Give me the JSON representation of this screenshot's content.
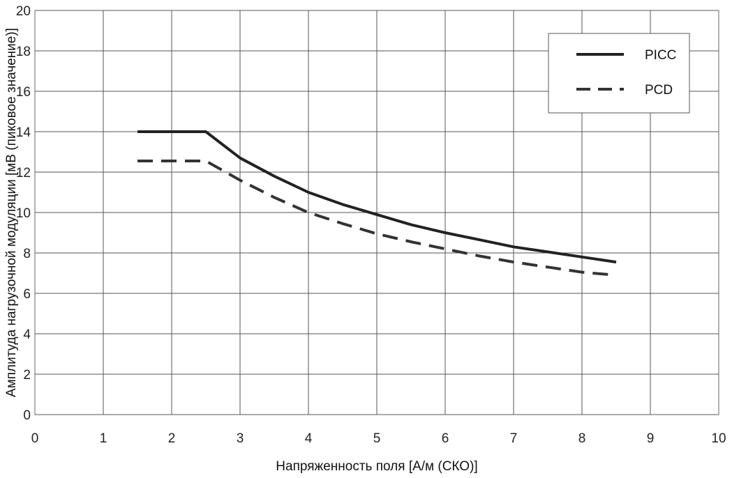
{
  "chart_data": {
    "type": "line",
    "title": "",
    "xlabel": "Напряженность поля [А/м (СКО)]",
    "ylabel": "Амплитуда нагрузочной модуляции [мВ (пиковое значение)]",
    "xlim": [
      0,
      10
    ],
    "ylim": [
      0,
      20
    ],
    "xticks": [
      "0",
      "1",
      "2",
      "3",
      "4",
      "5",
      "6",
      "7",
      "8",
      "9",
      "10"
    ],
    "yticks": [
      "0",
      "2",
      "4",
      "6",
      "8",
      "10",
      "12",
      "14",
      "16",
      "18",
      "20"
    ],
    "grid": true,
    "legend_position": "top-right",
    "series": [
      {
        "name": "PICC",
        "style": "solid",
        "color": "#222222",
        "x": [
          1.5,
          2.5,
          3.0,
          3.5,
          4.0,
          4.5,
          5.0,
          5.5,
          6.0,
          6.5,
          7.0,
          7.5,
          8.0,
          8.5
        ],
        "y": [
          14.0,
          14.0,
          12.7,
          11.8,
          11.0,
          10.4,
          9.9,
          9.4,
          9.0,
          8.65,
          8.3,
          8.05,
          7.8,
          7.55
        ]
      },
      {
        "name": "PCD",
        "style": "dashed",
        "color": "#333333",
        "x": [
          1.5,
          2.5,
          3.0,
          3.5,
          4.0,
          4.5,
          5.0,
          5.5,
          6.0,
          6.5,
          7.0,
          7.5,
          8.0,
          8.5
        ],
        "y": [
          12.55,
          12.55,
          11.6,
          10.75,
          10.0,
          9.45,
          8.95,
          8.55,
          8.2,
          7.85,
          7.55,
          7.3,
          7.05,
          6.9
        ]
      }
    ]
  }
}
